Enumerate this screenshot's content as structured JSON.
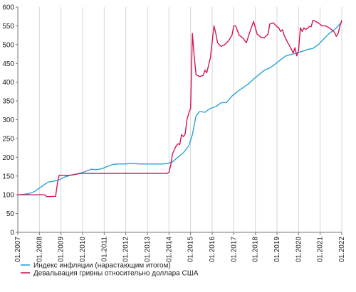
{
  "chart_data": {
    "type": "line",
    "title": "",
    "xlabel": "",
    "ylabel": "",
    "x_range": [
      "2007-01",
      "2022-01"
    ],
    "ylim": [
      0,
      600
    ],
    "y_ticks": [
      0,
      50,
      100,
      150,
      200,
      250,
      300,
      350,
      400,
      450,
      500,
      550,
      600
    ],
    "x_ticks": [
      "01.2007",
      "01.2008",
      "01.2009",
      "01.2010",
      "01.2011",
      "01.2012",
      "01.2013",
      "01.2014",
      "01.2015",
      "01.2016",
      "01.2017",
      "01.2018",
      "01.2019",
      "01.2020",
      "01.2021",
      "01.2022"
    ],
    "grid": {
      "vertical": true,
      "horizontal": false
    },
    "legend_position": "bottom-left",
    "series": [
      {
        "name": "Индекс инфляции (нарастающим итогом)",
        "color": "#29a3d8",
        "points": [
          [
            "2007-01",
            100
          ],
          [
            "2007-04",
            101
          ],
          [
            "2007-07",
            103
          ],
          [
            "2007-10",
            108
          ],
          [
            "2008-01",
            118
          ],
          [
            "2008-04",
            128
          ],
          [
            "2008-06",
            134
          ],
          [
            "2008-09",
            136
          ],
          [
            "2008-12",
            140
          ],
          [
            "2009-03",
            147
          ],
          [
            "2009-06",
            152
          ],
          [
            "2009-09",
            154
          ],
          [
            "2009-12",
            158
          ],
          [
            "2010-03",
            163
          ],
          [
            "2010-06",
            168
          ],
          [
            "2010-09",
            167
          ],
          [
            "2010-12",
            170
          ],
          [
            "2011-03",
            176
          ],
          [
            "2011-06",
            181
          ],
          [
            "2011-09",
            182
          ],
          [
            "2011-12",
            182
          ],
          [
            "2012-03",
            183
          ],
          [
            "2012-06",
            183
          ],
          [
            "2012-09",
            182
          ],
          [
            "2012-12",
            182
          ],
          [
            "2013-03",
            182
          ],
          [
            "2013-06",
            182
          ],
          [
            "2013-09",
            182
          ],
          [
            "2013-12",
            183
          ],
          [
            "2014-03",
            188
          ],
          [
            "2014-06",
            200
          ],
          [
            "2014-09",
            212
          ],
          [
            "2014-12",
            230
          ],
          [
            "2015-02",
            260
          ],
          [
            "2015-04",
            310
          ],
          [
            "2015-06",
            322
          ],
          [
            "2015-09",
            320
          ],
          [
            "2015-12",
            330
          ],
          [
            "2016-03",
            335
          ],
          [
            "2016-06",
            345
          ],
          [
            "2016-09",
            346
          ],
          [
            "2016-12",
            363
          ],
          [
            "2017-03",
            375
          ],
          [
            "2017-06",
            385
          ],
          [
            "2017-09",
            395
          ],
          [
            "2017-12",
            408
          ],
          [
            "2018-03",
            420
          ],
          [
            "2018-06",
            432
          ],
          [
            "2018-09",
            438
          ],
          [
            "2018-12",
            448
          ],
          [
            "2019-03",
            460
          ],
          [
            "2019-06",
            470
          ],
          [
            "2019-09",
            474
          ],
          [
            "2019-12",
            478
          ],
          [
            "2020-03",
            482
          ],
          [
            "2020-06",
            487
          ],
          [
            "2020-09",
            490
          ],
          [
            "2020-12",
            500
          ],
          [
            "2021-03",
            515
          ],
          [
            "2021-06",
            530
          ],
          [
            "2021-09",
            540
          ],
          [
            "2021-12",
            555
          ],
          [
            "2022-01",
            560
          ]
        ]
      },
      {
        "name": "Девальвация гривны относительно доллара США",
        "color": "#d4145a",
        "points": [
          [
            "2007-01",
            100
          ],
          [
            "2008-04",
            100
          ],
          [
            "2008-05",
            95
          ],
          [
            "2008-10",
            96
          ],
          [
            "2008-11",
            130
          ],
          [
            "2008-12",
            152
          ],
          [
            "2009-06",
            152
          ],
          [
            "2009-12",
            157
          ],
          [
            "2010-06",
            157
          ],
          [
            "2010-12",
            157
          ],
          [
            "2011-06",
            157
          ],
          [
            "2011-12",
            157
          ],
          [
            "2012-06",
            157
          ],
          [
            "2012-12",
            157
          ],
          [
            "2013-06",
            157
          ],
          [
            "2013-12",
            157
          ],
          [
            "2014-01",
            160
          ],
          [
            "2014-02",
            180
          ],
          [
            "2014-03",
            210
          ],
          [
            "2014-05",
            230
          ],
          [
            "2014-06",
            236
          ],
          [
            "2014-07",
            234
          ],
          [
            "2014-08",
            260
          ],
          [
            "2014-09",
            255
          ],
          [
            "2014-10",
            262
          ],
          [
            "2014-11",
            300
          ],
          [
            "2014-12",
            318
          ],
          [
            "2015-01",
            330
          ],
          [
            "2015-02",
            530
          ],
          [
            "2015-03",
            470
          ],
          [
            "2015-04",
            420
          ],
          [
            "2015-06",
            415
          ],
          [
            "2015-08",
            418
          ],
          [
            "2015-09",
            432
          ],
          [
            "2015-10",
            425
          ],
          [
            "2015-12",
            465
          ],
          [
            "2016-02",
            550
          ],
          [
            "2016-03",
            530
          ],
          [
            "2016-04",
            505
          ],
          [
            "2016-06",
            495
          ],
          [
            "2016-08",
            500
          ],
          [
            "2016-10",
            510
          ],
          [
            "2016-12",
            525
          ],
          [
            "2017-01",
            550
          ],
          [
            "2017-02",
            550
          ],
          [
            "2017-04",
            525
          ],
          [
            "2017-06",
            518
          ],
          [
            "2017-08",
            505
          ],
          [
            "2017-10",
            535
          ],
          [
            "2017-12",
            562
          ],
          [
            "2018-02",
            528
          ],
          [
            "2018-04",
            520
          ],
          [
            "2018-06",
            518
          ],
          [
            "2018-08",
            528
          ],
          [
            "2018-09",
            555
          ],
          [
            "2018-11",
            558
          ],
          [
            "2019-01",
            548
          ],
          [
            "2019-02",
            545
          ],
          [
            "2019-03",
            535
          ],
          [
            "2019-04",
            540
          ],
          [
            "2019-05",
            525
          ],
          [
            "2019-07",
            505
          ],
          [
            "2019-09",
            488
          ],
          [
            "2019-10",
            478
          ],
          [
            "2019-11",
            492
          ],
          [
            "2019-12",
            470
          ],
          [
            "2020-01",
            485
          ],
          [
            "2020-02",
            545
          ],
          [
            "2020-03",
            535
          ],
          [
            "2020-04",
            545
          ],
          [
            "2020-05",
            540
          ],
          [
            "2020-07",
            548
          ],
          [
            "2020-08",
            548
          ],
          [
            "2020-09",
            565
          ],
          [
            "2020-10",
            563
          ],
          [
            "2020-12",
            558
          ],
          [
            "2021-02",
            550
          ],
          [
            "2021-04",
            550
          ],
          [
            "2021-06",
            545
          ],
          [
            "2021-08",
            538
          ],
          [
            "2021-09",
            532
          ],
          [
            "2021-10",
            522
          ],
          [
            "2021-11",
            530
          ],
          [
            "2021-12",
            550
          ],
          [
            "2022-01",
            565
          ]
        ]
      }
    ]
  }
}
